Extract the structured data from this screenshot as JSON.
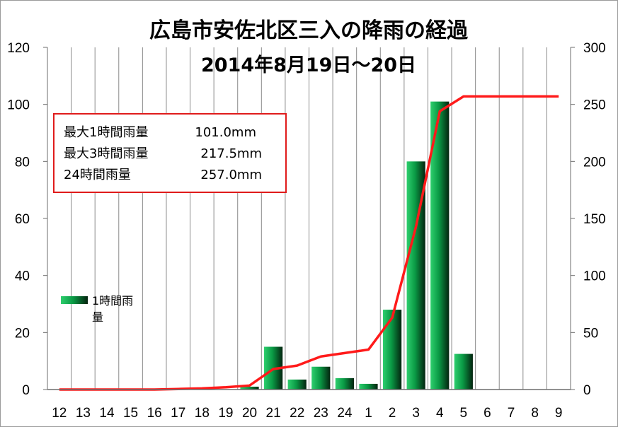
{
  "chart_data": {
    "type": "bar",
    "title_line1": "広島市安佐北区三入の降雨の経過",
    "title_line2": "2014年8月19日～20日",
    "categories": [
      "12",
      "13",
      "14",
      "15",
      "16",
      "17",
      "18",
      "19",
      "20",
      "21",
      "22",
      "23",
      "24",
      "1",
      "2",
      "3",
      "4",
      "5",
      "6",
      "7",
      "8",
      "9"
    ],
    "series": [
      {
        "name": "1時間雨量",
        "type": "bar",
        "axis": "left",
        "values": [
          0,
          0,
          0,
          0,
          0,
          0,
          0,
          0,
          1,
          15,
          3.5,
          8,
          4,
          2,
          28,
          80,
          101,
          12.5,
          0,
          0,
          0,
          0
        ]
      },
      {
        "type": "line",
        "axis": "right",
        "values": [
          0,
          0,
          0,
          0,
          0,
          0.5,
          1,
          2,
          3.5,
          18,
          21,
          29,
          32,
          35,
          63,
          143,
          244,
          257,
          257,
          257,
          257,
          257
        ]
      }
    ],
    "y_left": {
      "min": 0,
      "max": 120,
      "ticks": [
        "0",
        "20",
        "40",
        "60",
        "80",
        "100",
        "120"
      ]
    },
    "y_right": {
      "min": 0,
      "max": 300,
      "ticks": [
        "0",
        "50",
        "100",
        "150",
        "200",
        "250",
        "300"
      ]
    },
    "grid": "vertical",
    "legend_position": "middle-left",
    "info_box": [
      {
        "label": "最大1時間雨量",
        "value": "101.0mm"
      },
      {
        "label": "最大3時間雨量",
        "value": "217.5mm"
      },
      {
        "label": "24時間雨量",
        "value": "257.0mm"
      }
    ],
    "legend": {
      "line1": "1時間雨",
      "line2": "量"
    },
    "colors": {
      "bar_light": "#2ecf6e",
      "bar_mid": "#0a9a45",
      "bar_dark": "#03240f",
      "line": "#ff1a1a",
      "info_border": "#e01b1b",
      "grid": "#8a8a8a"
    }
  }
}
